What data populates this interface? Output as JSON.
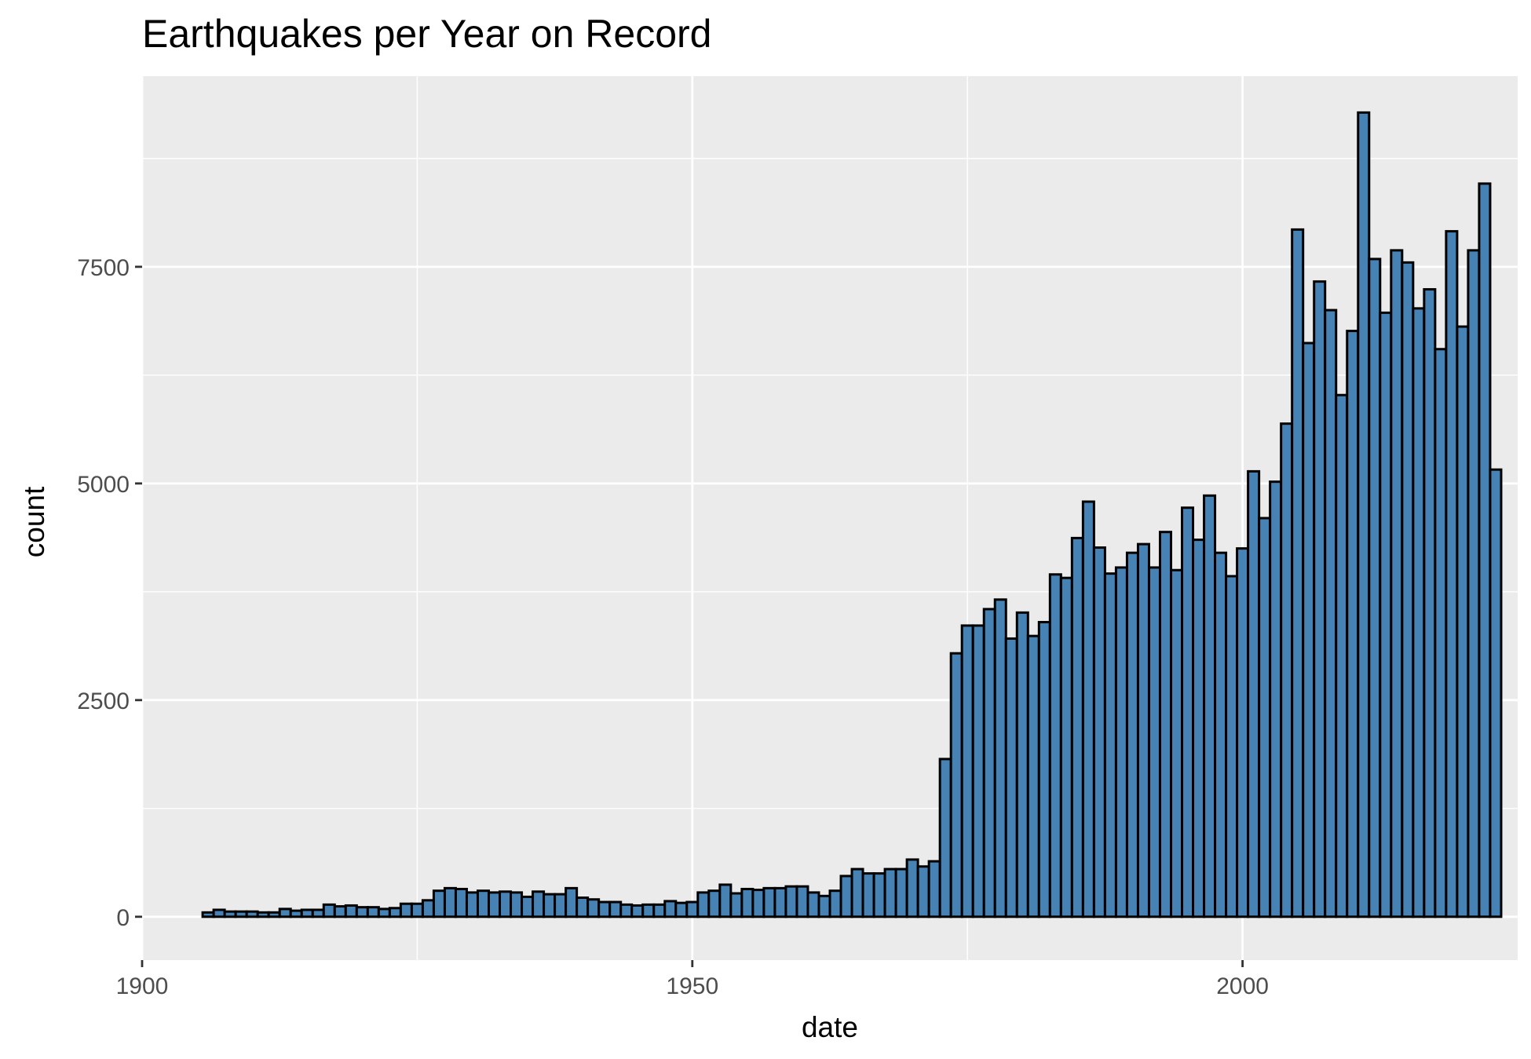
{
  "chart_data": {
    "type": "bar",
    "title": "Earthquakes per Year on Record",
    "xlabel": "date",
    "ylabel": "count",
    "x_ticks": [
      "1900",
      "1950",
      "2000"
    ],
    "y_ticks": [
      "0",
      "2500",
      "5000",
      "7500"
    ],
    "xlim": [
      1900,
      2025
    ],
    "ylim": [
      -500,
      9700
    ],
    "grid": true,
    "legend": "none",
    "colors": {
      "fill": "#4682B4",
      "outline": "#000000",
      "panel": "#EBEBEB",
      "grid": "#FFFFFF"
    },
    "x": [
      1906,
      1907,
      1908,
      1909,
      1910,
      1911,
      1912,
      1913,
      1914,
      1915,
      1916,
      1917,
      1918,
      1919,
      1920,
      1921,
      1922,
      1923,
      1924,
      1925,
      1926,
      1927,
      1928,
      1929,
      1930,
      1931,
      1932,
      1933,
      1934,
      1935,
      1936,
      1937,
      1938,
      1939,
      1940,
      1941,
      1942,
      1943,
      1944,
      1945,
      1946,
      1947,
      1948,
      1949,
      1950,
      1951,
      1952,
      1953,
      1954,
      1955,
      1956,
      1957,
      1958,
      1959,
      1960,
      1961,
      1962,
      1963,
      1964,
      1965,
      1966,
      1967,
      1968,
      1969,
      1970,
      1971,
      1972,
      1973,
      1974,
      1975,
      1976,
      1977,
      1978,
      1979,
      1980,
      1981,
      1982,
      1983,
      1984,
      1985,
      1986,
      1987,
      1988,
      1989,
      1990,
      1991,
      1992,
      1993,
      1994,
      1995,
      1996,
      1997,
      1998,
      1999,
      2000,
      2001,
      2002,
      2003,
      2004,
      2005,
      2006,
      2007,
      2008,
      2009,
      2010,
      2011,
      2012,
      2013,
      2014,
      2015,
      2016,
      2017,
      2018,
      2019,
      2020,
      2021,
      2022,
      2023
    ],
    "values": [
      50,
      80,
      60,
      60,
      60,
      50,
      50,
      90,
      70,
      80,
      80,
      140,
      120,
      130,
      110,
      110,
      90,
      100,
      150,
      150,
      190,
      300,
      330,
      320,
      280,
      300,
      280,
      290,
      280,
      230,
      290,
      260,
      260,
      330,
      220,
      200,
      170,
      170,
      140,
      130,
      140,
      140,
      180,
      160,
      170,
      280,
      300,
      370,
      270,
      320,
      310,
      330,
      330,
      350,
      350,
      280,
      240,
      300,
      470,
      550,
      500,
      500,
      550,
      550,
      660,
      580,
      640,
      1820,
      3040,
      3360,
      3360,
      3550,
      3660,
      3210,
      3510,
      3240,
      3400,
      3950,
      3910,
      4370,
      4790,
      4260,
      3960,
      4030,
      4200,
      4300,
      4030,
      4440,
      4000,
      4720,
      4350,
      4860,
      4200,
      3930,
      4250,
      5140,
      4600,
      5020,
      5690,
      7930,
      6620,
      7330,
      7000,
      6020,
      6760,
      9280,
      7590,
      6970,
      7690,
      7550,
      7020,
      7240,
      6550,
      7910,
      6810,
      7690,
      8460,
      5160
    ]
  }
}
